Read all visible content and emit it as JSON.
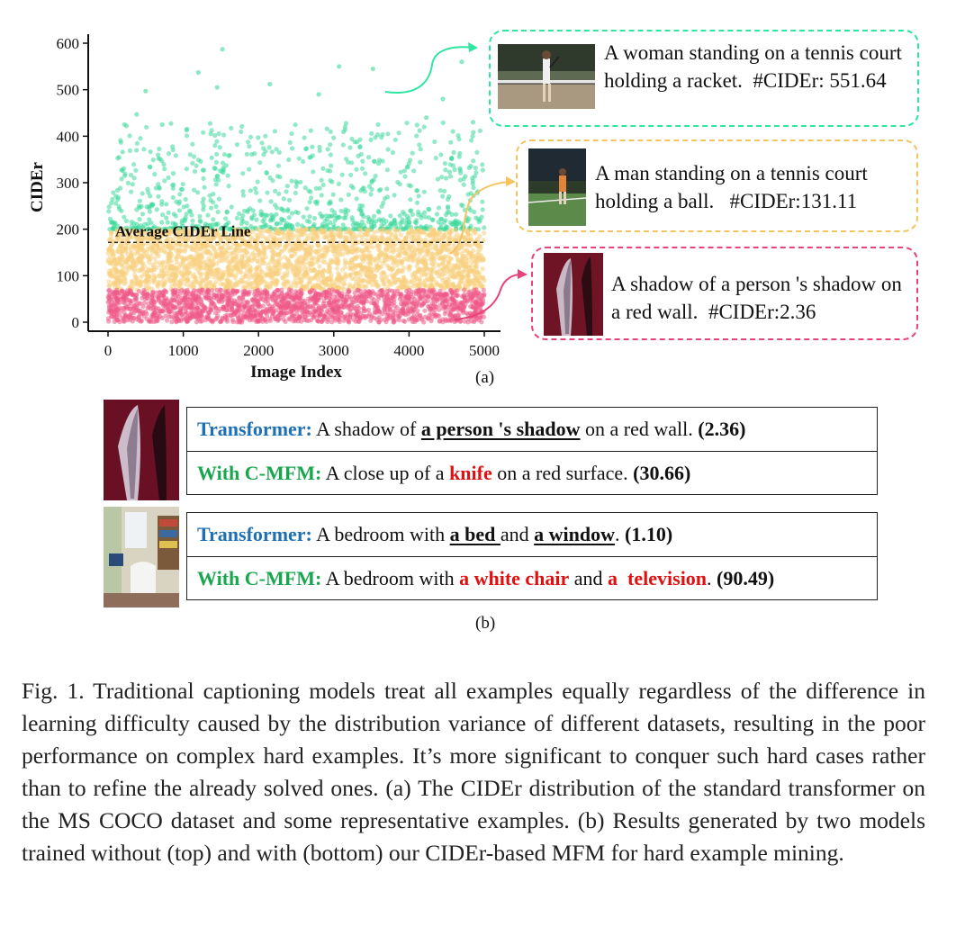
{
  "chart_data": {
    "type": "scatter",
    "xlabel": "Image Index",
    "ylabel": "CIDEr",
    "xlim": [
      0,
      5200
    ],
    "ylim": [
      -15,
      615
    ],
    "xticks": [
      0,
      1000,
      2000,
      3000,
      4000,
      5000
    ],
    "yticks": [
      0,
      100,
      200,
      300,
      400,
      500,
      600
    ],
    "average_line": {
      "label": "Average CIDEr Line",
      "value": 133
    },
    "series": [
      {
        "range": [
          200,
          600
        ],
        "count": 900,
        "color": "#3dd99a"
      },
      {
        "range": [
          70,
          200
        ],
        "count": 2600,
        "color": "#f8cf7d"
      },
      {
        "range": [
          0,
          70
        ],
        "count": 1700,
        "color": "#ee5a89"
      }
    ],
    "sample_points": [
      {
        "x": 1520,
        "y": 587
      },
      {
        "x": 3070,
        "y": 550
      },
      {
        "x": 3520,
        "y": 545
      },
      {
        "x": 1200,
        "y": 537
      },
      {
        "x": 2800,
        "y": 490
      },
      {
        "x": 500,
        "y": 497
      },
      {
        "x": 1450,
        "y": 505
      },
      {
        "x": 2150,
        "y": 512
      },
      {
        "x": 4450,
        "y": 480
      },
      {
        "x": 4700,
        "y": 560
      },
      {
        "x": 4850,
        "y": 430
      },
      {
        "x": 380,
        "y": 447
      },
      {
        "x": 720,
        "y": 425
      },
      {
        "x": 4230,
        "y": 440
      }
    ],
    "panel_label": "(a)"
  },
  "examples_a": [
    {
      "caption": "A woman standing on a tennis court holding a racket.",
      "score_text": "#CIDEr: 551.64",
      "color": "#2ee6a0"
    },
    {
      "caption": "A man standing on a tennis court holding a ball.",
      "score_text": "#CIDEr:131.11",
      "color": "#f3c45f"
    },
    {
      "caption": "A shadow of a person 's shadow on a red wall.",
      "score_text": "#CIDEr:2.36",
      "color": "#e8427a"
    }
  ],
  "panel_b": {
    "label": "(b)",
    "examples": [
      {
        "transformer": {
          "label": "Transformer:",
          "p1": " A shadow of ",
          "u1": "a person 's shadow",
          "p2": " on a red wall. ",
          "score": "(2.36)"
        },
        "cmfm": {
          "label": "With C-MFM:",
          "p1": " A close up of a ",
          "r1": "knife",
          "p2": " on a red surface. ",
          "score": "(30.66)"
        }
      },
      {
        "transformer": {
          "label": "Transformer:",
          "p1": " A bedroom with ",
          "u1": "a bed ",
          "p2": "and ",
          "u2": "a window",
          "p3": ". ",
          "score": "(1.10)"
        },
        "cmfm": {
          "label": "With C-MFM:",
          "p1": " A bedroom with ",
          "r1": "a white chair",
          "p2": " and ",
          "r2": "a  television",
          "p3": ". ",
          "score": "(90.49)"
        }
      }
    ]
  },
  "figure_caption": "Fig. 1.   Traditional captioning models treat all examples equally regardless of the difference in learning difficulty caused by the distribution variance of different datasets, resulting in the poor performance on complex hard examples. It’s more significant to conquer such hard cases rather than to refine the already solved ones. (a) The CIDEr distribution of the standard transformer on the MS COCO dataset and some representative examples. (b) Results generated by two models trained without (top) and with (bottom) our CIDEr-based MFM for hard example mining."
}
